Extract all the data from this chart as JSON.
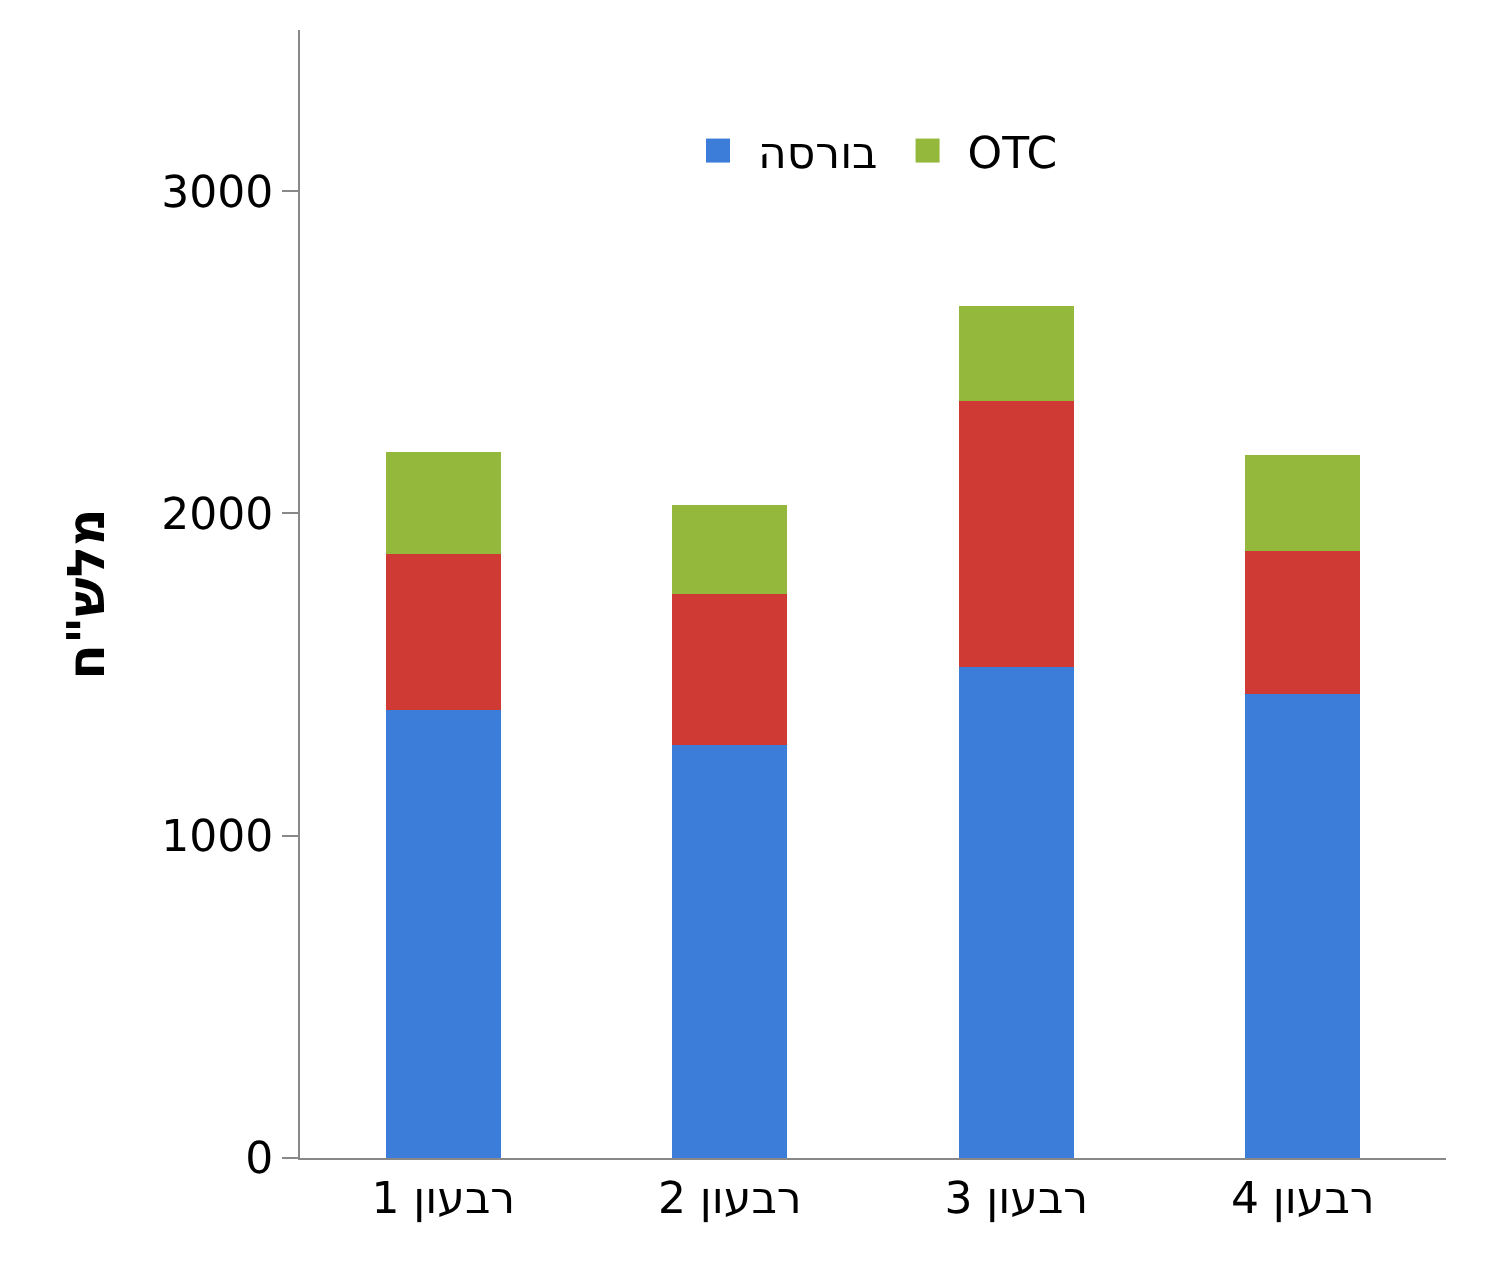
{
  "chart_data": {
    "type": "bar",
    "stacked": true,
    "ylabel": "מלש\"ח",
    "categories": [
      "רבעון 1",
      "רבעון 2",
      "רבעון 3",
      "רבעון 4"
    ],
    "series": [
      {
        "name": "בורסה",
        "color": "#3b7dd8",
        "values": [
          1390,
          1280,
          1525,
          1440
        ]
      },
      {
        "color": "#d03a35",
        "values": [
          485,
          470,
          825,
          445
        ]
      },
      {
        "name": "OTC",
        "color": "#94b83c",
        "values": [
          315,
          275,
          295,
          295
        ]
      }
    ],
    "ylim": [
      0,
      3500
    ],
    "yticks": [
      0,
      1000,
      2000,
      3000
    ],
    "grid": false,
    "legend": "top"
  }
}
